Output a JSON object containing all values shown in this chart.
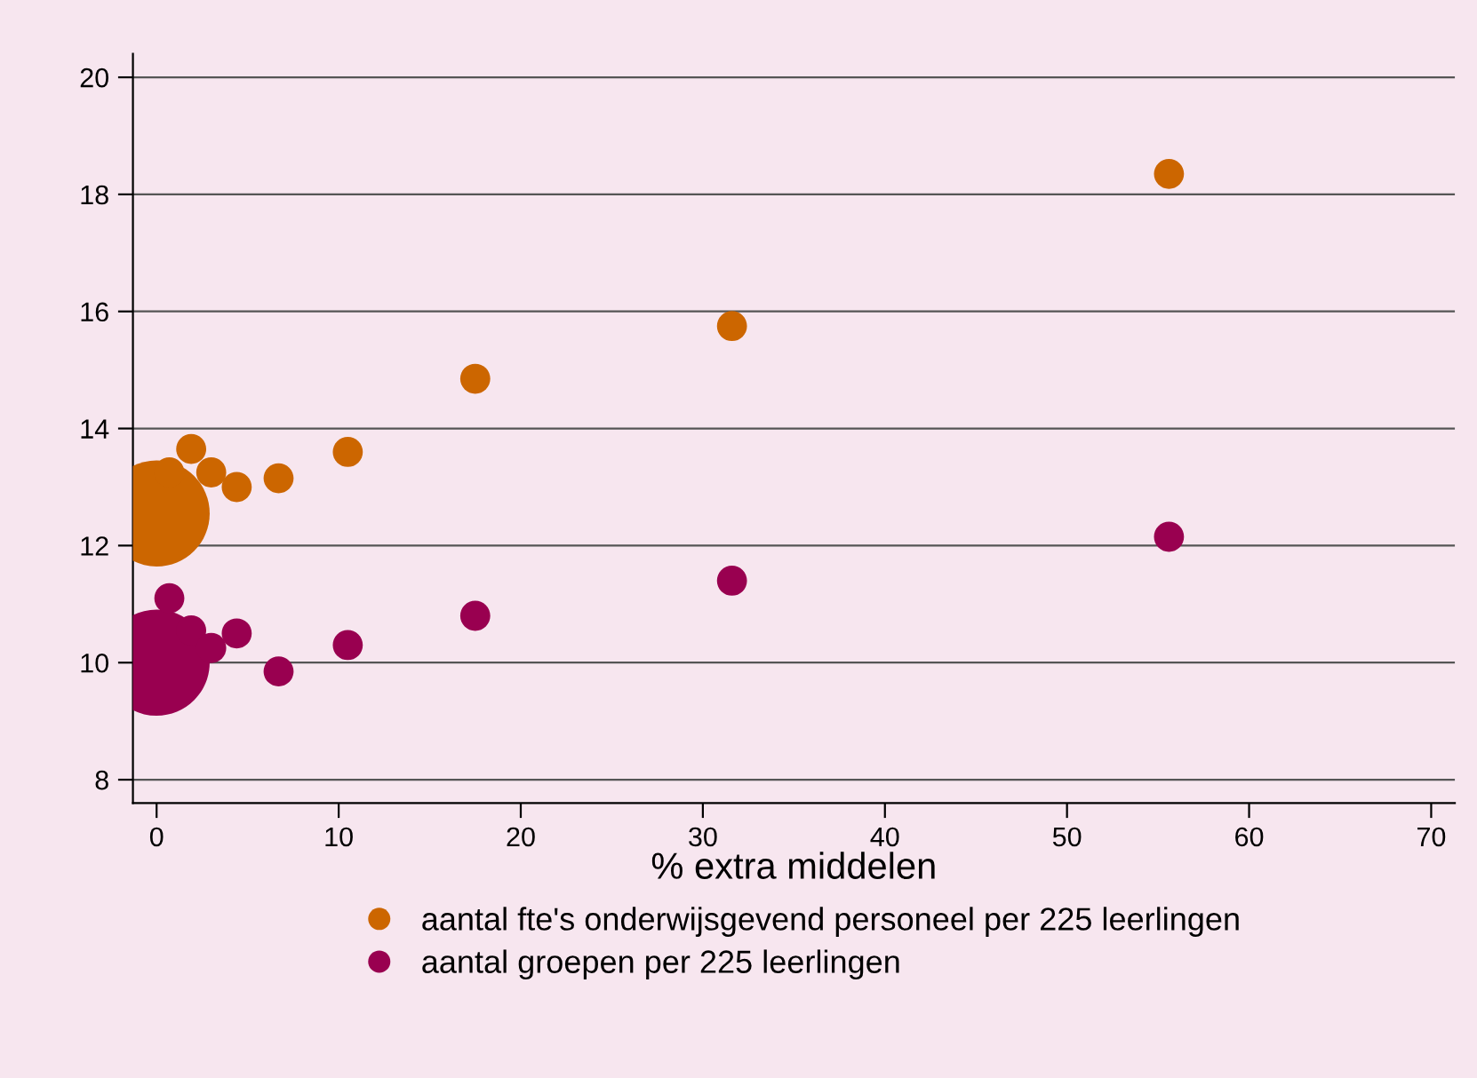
{
  "chart_data": {
    "type": "bubble",
    "xlabel": "% extra middelen",
    "xlim": [
      -1.3,
      71.3
    ],
    "ylim": [
      7.6,
      20.4
    ],
    "xticks": [
      0,
      10,
      20,
      30,
      40,
      50,
      60,
      70
    ],
    "yticks": [
      8,
      10,
      12,
      14,
      16,
      18,
      20
    ],
    "grid": "y",
    "legend": "bottom",
    "series": [
      {
        "name": "aantal fte's onderwijsgevend personeel per 225 leerlingen",
        "color": "#cc6600",
        "x": [
          0,
          0.7,
          1.9,
          3.0,
          4.4,
          6.7,
          10.5,
          17.5,
          31.6,
          55.6
        ],
        "values": [
          12.55,
          13.25,
          13.65,
          13.25,
          13.0,
          13.15,
          13.6,
          14.85,
          15.75,
          18.35
        ],
        "sizes": [
          1,
          0.08,
          0.08,
          0.08,
          0.08,
          0.08,
          0.08,
          0.08,
          0.08,
          0.08
        ]
      },
      {
        "name": "aantal groepen per 225 leerlingen",
        "color": "#990050",
        "x": [
          0,
          0.7,
          1.9,
          3.0,
          4.4,
          6.7,
          10.5,
          17.5,
          31.6,
          55.6
        ],
        "values": [
          10.0,
          11.1,
          10.55,
          10.25,
          10.5,
          9.85,
          10.3,
          10.8,
          11.4,
          12.15
        ],
        "sizes": [
          1,
          0.08,
          0.08,
          0.08,
          0.08,
          0.08,
          0.08,
          0.08,
          0.08,
          0.08
        ]
      }
    ]
  }
}
